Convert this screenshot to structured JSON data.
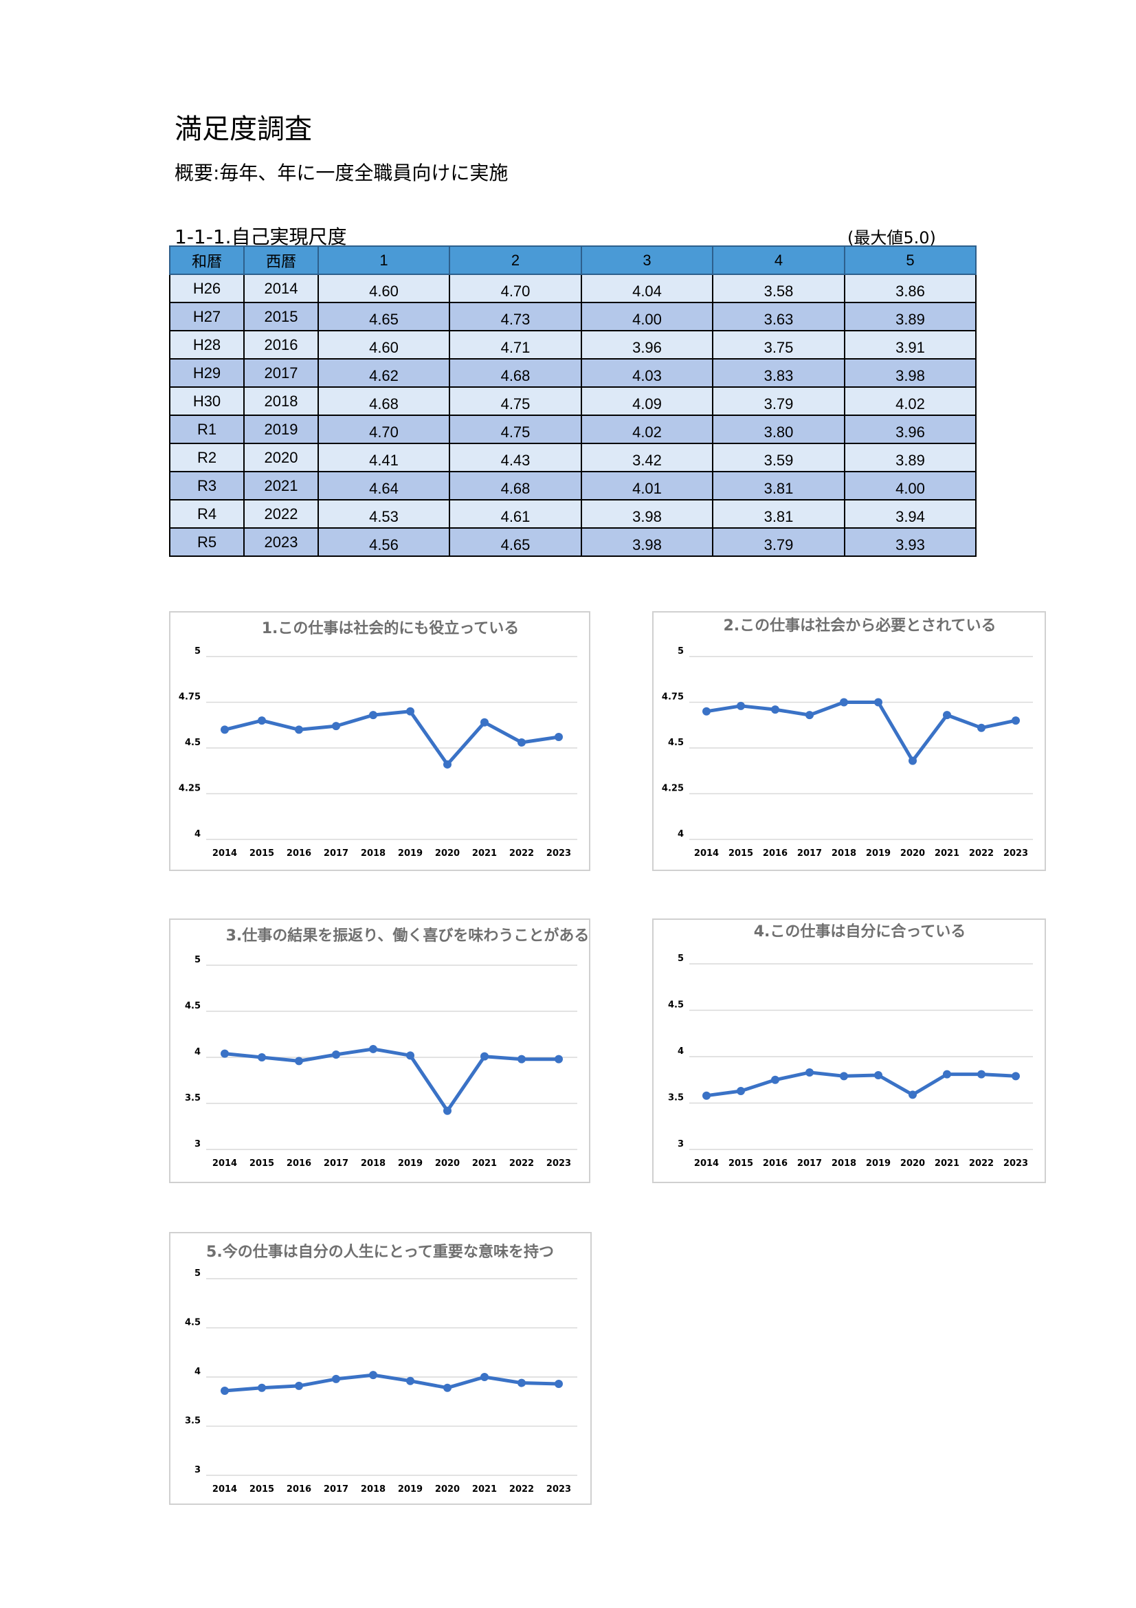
{
  "doc": {
    "title": "満足度調査",
    "summary": "概要:毎年、年に一度全職員向けに実施",
    "section_title": "1-1-1.自己実現尺度",
    "max_note": "(最大値5.0)"
  },
  "table": {
    "headers": [
      "和暦",
      "西暦",
      "1",
      "2",
      "3",
      "4",
      "5"
    ],
    "rows": [
      [
        "H26",
        "2014",
        "4.60",
        "4.70",
        "4.04",
        "3.58",
        "3.86"
      ],
      [
        "H27",
        "2015",
        "4.65",
        "4.73",
        "4.00",
        "3.63",
        "3.89"
      ],
      [
        "H28",
        "2016",
        "4.60",
        "4.71",
        "3.96",
        "3.75",
        "3.91"
      ],
      [
        "H29",
        "2017",
        "4.62",
        "4.68",
        "4.03",
        "3.83",
        "3.98"
      ],
      [
        "H30",
        "2018",
        "4.68",
        "4.75",
        "4.09",
        "3.79",
        "4.02"
      ],
      [
        "R1",
        "2019",
        "4.70",
        "4.75",
        "4.02",
        "3.80",
        "3.96"
      ],
      [
        "R2",
        "2020",
        "4.41",
        "4.43",
        "3.42",
        "3.59",
        "3.89"
      ],
      [
        "R3",
        "2021",
        "4.64",
        "4.68",
        "4.01",
        "3.81",
        "4.00"
      ],
      [
        "R4",
        "2022",
        "4.53",
        "4.61",
        "3.98",
        "3.81",
        "3.94"
      ],
      [
        "R5",
        "2023",
        "4.56",
        "4.65",
        "3.98",
        "3.79",
        "3.93"
      ]
    ]
  },
  "colors": {
    "series": "#3a72c6",
    "header": "#4a9ad6",
    "row_light": "#dde9f7",
    "row_dark": "#b4c8ea"
  },
  "chart_data": [
    {
      "type": "line",
      "title": "1.この仕事は社会的にも役立っている",
      "categories": [
        "2014",
        "2015",
        "2016",
        "2017",
        "2018",
        "2019",
        "2020",
        "2021",
        "2022",
        "2023"
      ],
      "values": [
        4.6,
        4.65,
        4.6,
        4.62,
        4.68,
        4.7,
        4.41,
        4.64,
        4.53,
        4.56
      ],
      "ylim": [
        4,
        5
      ],
      "yticks": [
        "4",
        "4.25",
        "4.5",
        "4.75",
        "5"
      ],
      "grid": true,
      "legend": "none"
    },
    {
      "type": "line",
      "title": "2.この仕事は社会から必要とされている",
      "categories": [
        "2014",
        "2015",
        "2016",
        "2017",
        "2018",
        "2019",
        "2020",
        "2021",
        "2022",
        "2023"
      ],
      "values": [
        4.7,
        4.73,
        4.71,
        4.68,
        4.75,
        4.75,
        4.43,
        4.68,
        4.61,
        4.65
      ],
      "ylim": [
        4,
        5
      ],
      "yticks": [
        "4",
        "4.25",
        "4.5",
        "4.75",
        "5"
      ],
      "grid": true,
      "legend": "none"
    },
    {
      "type": "line",
      "title": "3.仕事の結果を振返り、働く喜びを味わうことがある",
      "categories": [
        "2014",
        "2015",
        "2016",
        "2017",
        "2018",
        "2019",
        "2020",
        "2021",
        "2022",
        "2023"
      ],
      "values": [
        4.04,
        4.0,
        3.96,
        4.03,
        4.09,
        4.02,
        3.42,
        4.01,
        3.98,
        3.98
      ],
      "ylim": [
        3,
        5
      ],
      "yticks": [
        "3",
        "3.5",
        "4",
        "4.5",
        "5"
      ],
      "grid": true,
      "legend": "none"
    },
    {
      "type": "line",
      "title": "4.この仕事は自分に合っている",
      "categories": [
        "2014",
        "2015",
        "2016",
        "2017",
        "2018",
        "2019",
        "2020",
        "2021",
        "2022",
        "2023"
      ],
      "values": [
        3.58,
        3.63,
        3.75,
        3.83,
        3.79,
        3.8,
        3.59,
        3.81,
        3.81,
        3.79
      ],
      "ylim": [
        3,
        5
      ],
      "yticks": [
        "3",
        "3.5",
        "4",
        "4.5",
        "5"
      ],
      "grid": true,
      "legend": "none"
    },
    {
      "type": "line",
      "title": "5.今の仕事は自分の人生にとって重要な意味を持つ",
      "categories": [
        "2014",
        "2015",
        "2016",
        "2017",
        "2018",
        "2019",
        "2020",
        "2021",
        "2022",
        "2023"
      ],
      "values": [
        3.86,
        3.89,
        3.91,
        3.98,
        4.02,
        3.96,
        3.89,
        4.0,
        3.94,
        3.93
      ],
      "ylim": [
        3,
        5
      ],
      "yticks": [
        "3",
        "3.5",
        "4",
        "4.5",
        "5"
      ],
      "grid": true,
      "legend": "none"
    }
  ]
}
